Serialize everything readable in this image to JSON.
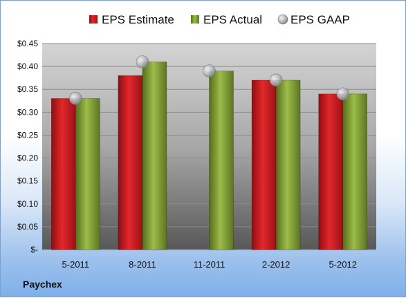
{
  "chart_data": {
    "type": "bar",
    "title": "",
    "xlabel": "",
    "ylabel": "",
    "categories": [
      "5-2011",
      "8-2011",
      "11-2011",
      "2-2012",
      "5-2012"
    ],
    "series": [
      {
        "name": "EPS Estimate",
        "kind": "bar",
        "color": "#c0181c",
        "values": [
          0.33,
          0.38,
          null,
          0.37,
          0.34
        ]
      },
      {
        "name": "EPS Actual",
        "kind": "bar",
        "color": "#7d9a2e",
        "values": [
          0.33,
          0.41,
          0.39,
          0.37,
          0.34
        ]
      },
      {
        "name": "EPS GAAP",
        "kind": "marker",
        "color": "#b8bcc4",
        "values": [
          0.33,
          0.41,
          0.39,
          0.37,
          0.34
        ]
      }
    ],
    "ylim": [
      0,
      0.45
    ],
    "yticks": [
      0,
      0.05,
      0.1,
      0.15,
      0.2,
      0.25,
      0.3,
      0.35,
      0.4,
      0.45
    ],
    "ytick_labels": [
      "$-",
      "$0.05",
      "$0.10",
      "$0.15",
      "$0.20",
      "$0.25",
      "$0.30",
      "$0.35",
      "$0.40",
      "$0.45"
    ],
    "grid": true,
    "legend_position": "top"
  },
  "footer": {
    "company": "Paychex"
  }
}
